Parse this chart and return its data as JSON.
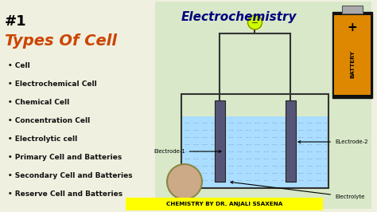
{
  "bg_color": "#f0f0e0",
  "title_number": "#1",
  "title_number_color": "#000000",
  "main_title": "Electrochemistry",
  "main_title_color": "#000080",
  "subtitle": "Types Of Cell",
  "subtitle_color": "#cc4400",
  "bullet_items": [
    "Cell",
    "Electrochemical Cell",
    "Chemical Cell",
    "Concentration Cell",
    "Electrolytic cell",
    "Primary Cell and Batteries",
    "Secondary Cell and Batteries",
    "Reserve Cell and Batteries"
  ],
  "bullet_color": "#111111",
  "diagram_bg": "#d8e8c8",
  "beaker_fill": "#aaddff",
  "beaker_outline": "#333333",
  "electrode_color": "#555577",
  "wire_color": "#333333",
  "bulb_color": "#ccff00",
  "footer_bg": "#ffff00",
  "footer_text": "CHEMISTRY BY DR. ANJALI SSAXENA",
  "footer_color": "#000000",
  "electrode1_label": "Electrode-1",
  "electrode2_label": "ELectrode-2",
  "electrolyte_label": "Electrolyte"
}
